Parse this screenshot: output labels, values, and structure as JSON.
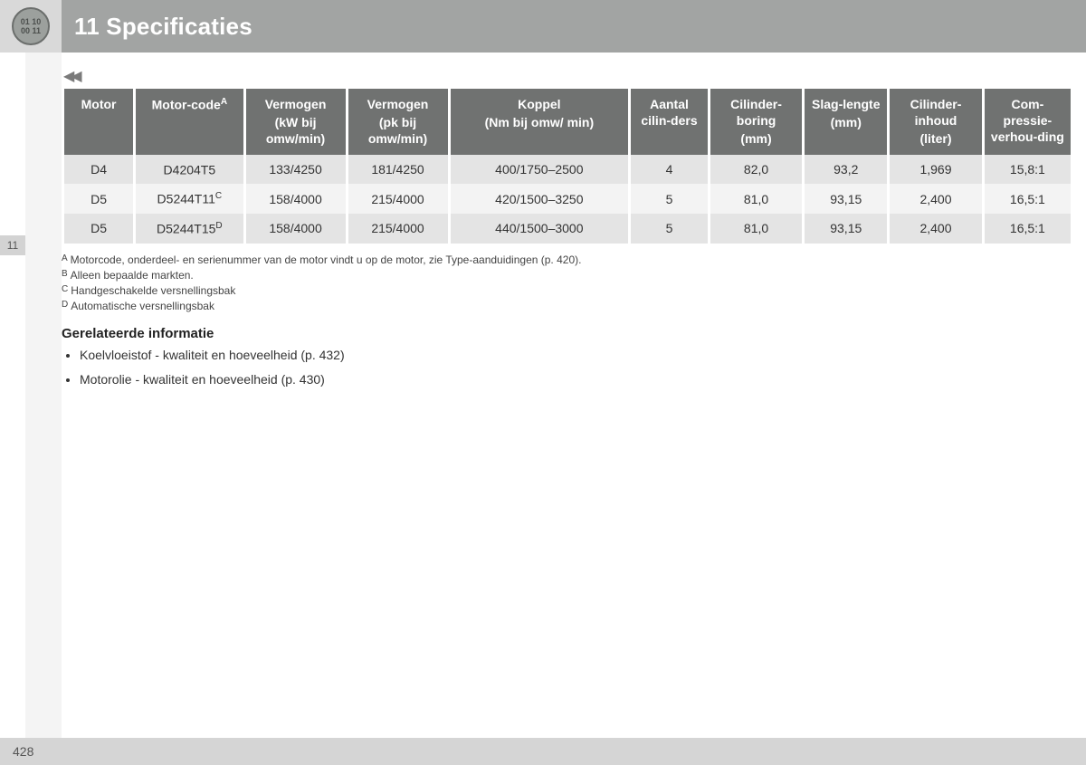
{
  "header": {
    "title": "11 Specificaties",
    "icon_top": "01 10",
    "icon_bottom": "00 11"
  },
  "sidebar": {
    "tab_label": "11"
  },
  "nav": {
    "back_arrows": "◀◀"
  },
  "table": {
    "columns": [
      {
        "main": "Motor",
        "sub": ""
      },
      {
        "main": "Motor-code",
        "sup": "A",
        "sub": ""
      },
      {
        "main": "Vermogen",
        "sub": "(kW bij omw/min)"
      },
      {
        "main": "Vermogen",
        "sub": "(pk bij omw/min)"
      },
      {
        "main": "Koppel",
        "sub": "(Nm bij omw/ min)"
      },
      {
        "main": "Aantal cilin-ders",
        "sub": ""
      },
      {
        "main": "Cilinder-boring",
        "sub": "(mm)"
      },
      {
        "main": "Slag-lengte",
        "sub": "(mm)"
      },
      {
        "main": "Cilinder-inhoud",
        "sub": "(liter)"
      },
      {
        "main": "Com-pressie-verhou-ding",
        "sub": ""
      }
    ],
    "rows": [
      {
        "motor": "D4",
        "code": "D4204T5",
        "code_sup": "",
        "kw": "133/4250",
        "pk": "181/4250",
        "koppel": "400/1750–2500",
        "cyl": "4",
        "bore": "82,0",
        "stroke": "93,2",
        "disp": "1,969",
        "comp": "15,8:1"
      },
      {
        "motor": "D5",
        "code": "D5244T11",
        "code_sup": "C",
        "kw": "158/4000",
        "pk": "215/4000",
        "koppel": "420/1500–3250",
        "cyl": "5",
        "bore": "81,0",
        "stroke": "93,15",
        "disp": "2,400",
        "comp": "16,5:1"
      },
      {
        "motor": "D5",
        "code": "D5244T15",
        "code_sup": "D",
        "kw": "158/4000",
        "pk": "215/4000",
        "koppel": "440/1500–3000",
        "cyl": "5",
        "bore": "81,0",
        "stroke": "93,15",
        "disp": "2,400",
        "comp": "16,5:1"
      }
    ]
  },
  "footnotes": [
    {
      "letter": "A",
      "text": "Motorcode, onderdeel- en serienummer van de motor vindt u op de motor, zie Type-aanduidingen (p. 420)."
    },
    {
      "letter": "B",
      "text": "Alleen bepaalde markten."
    },
    {
      "letter": "C",
      "text": "Handgeschakelde versnellingsbak"
    },
    {
      "letter": "D",
      "text": "Automatische versnellingsbak"
    }
  ],
  "related": {
    "heading": "Gerelateerde informatie",
    "items": [
      "Koelvloeistof - kwaliteit en hoeveelheid (p. 432)",
      "Motorolie - kwaliteit en hoeveelheid (p. 430)"
    ]
  },
  "footer": {
    "page_number": "428"
  },
  "colors": {
    "header_bg": "#a2a4a3",
    "th_bg": "#707271",
    "row_odd": "#e4e4e4",
    "row_even": "#f3f3f3",
    "side_bg": "#f4f4f4",
    "footer_bg": "#d5d5d5"
  }
}
